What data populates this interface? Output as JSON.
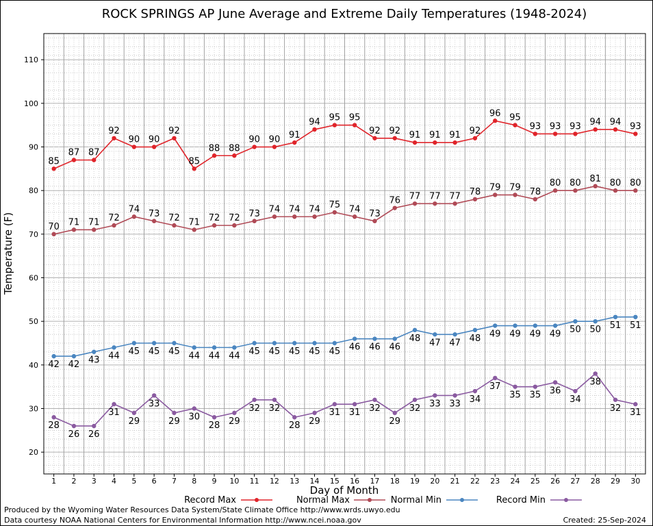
{
  "chart_data": {
    "type": "line",
    "title": "ROCK SPRINGS AP June Average and Extreme Daily Temperatures (1948-2024)",
    "xlabel": "Day of Month",
    "ylabel": "Temperature (F)",
    "ylim": [
      15,
      116
    ],
    "xlim": [
      0.5,
      30.5
    ],
    "grid": true,
    "legend_placement": "bottom",
    "x": [
      1,
      2,
      3,
      4,
      5,
      6,
      7,
      8,
      9,
      10,
      11,
      12,
      13,
      14,
      15,
      16,
      17,
      18,
      19,
      20,
      21,
      22,
      23,
      24,
      25,
      26,
      27,
      28,
      29,
      30
    ],
    "yticks": [
      20,
      30,
      40,
      50,
      60,
      70,
      80,
      90,
      100,
      110
    ],
    "series": [
      {
        "name": "Record Max",
        "color": "#e0242a",
        "label_pos": "above",
        "values": [
          85,
          87,
          87,
          92,
          90,
          90,
          92,
          85,
          88,
          88,
          90,
          90,
          91,
          94,
          95,
          95,
          92,
          92,
          91,
          91,
          91,
          92,
          96,
          95,
          93,
          93,
          93,
          94,
          94,
          93
        ]
      },
      {
        "name": "Normal Max",
        "color": "#b04a56",
        "label_pos": "above",
        "values": [
          70,
          71,
          71,
          72,
          74,
          73,
          72,
          71,
          72,
          72,
          73,
          74,
          74,
          74,
          75,
          74,
          73,
          76,
          77,
          77,
          77,
          78,
          79,
          79,
          78,
          80,
          80,
          81,
          80,
          80
        ]
      },
      {
        "name": "Normal Min",
        "color": "#4a86c0",
        "label_pos": "below",
        "values": [
          42,
          42,
          43,
          44,
          45,
          45,
          45,
          44,
          44,
          44,
          45,
          45,
          45,
          45,
          45,
          46,
          46,
          46,
          48,
          47,
          47,
          48,
          49,
          49,
          49,
          49,
          50,
          50,
          51,
          51
        ]
      },
      {
        "name": "Record Min",
        "color": "#8a5aa0",
        "label_pos": "below",
        "values": [
          28,
          26,
          26,
          31,
          29,
          33,
          29,
          30,
          28,
          29,
          32,
          32,
          28,
          29,
          31,
          31,
          32,
          29,
          32,
          33,
          33,
          34,
          37,
          35,
          35,
          36,
          34,
          38,
          32,
          31
        ]
      }
    ]
  },
  "footer": {
    "produced_by": "Produced by the Wyoming Water Resources Data System/State Climate Office http://www.wrds.uwyo.edu",
    "courtesy": "Data courtesy NOAA National Centers for Environmental Information http://www.ncei.noaa.gov",
    "created": "Created:  25-Sep-2024"
  }
}
